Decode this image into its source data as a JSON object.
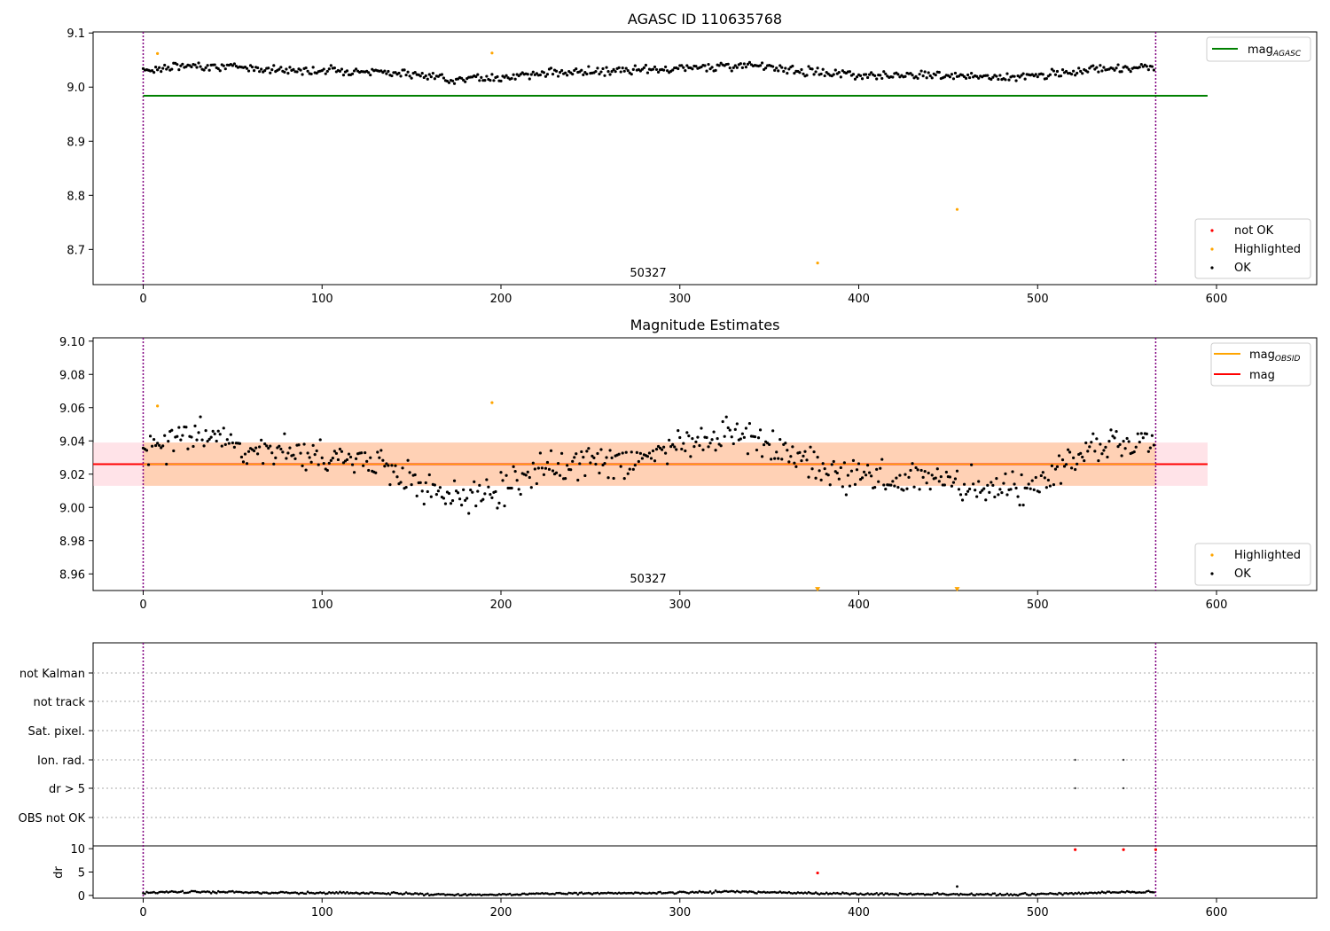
{
  "chart_data": [
    {
      "type": "scatter",
      "title": "AGASC ID 110635768",
      "xlim": [
        -28,
        656
      ],
      "ylim": [
        8.635,
        9.102
      ],
      "xticks": [
        "0",
        "100",
        "200",
        "300",
        "400",
        "500",
        "600"
      ],
      "yticks": [
        "8.7",
        "8.8",
        "8.9",
        "9.0",
        "9.1"
      ],
      "annotation": "50327",
      "obs_bounds": [
        0,
        566
      ],
      "colors": {
        "ok": "#000000",
        "highlighted": "#ffa500",
        "not_ok": "#ff0000",
        "agasc_line": "#008000",
        "bounds": "#800080"
      },
      "agasc_mag": {
        "value": 8.984,
        "x": [
          0,
          595
        ]
      },
      "series": [
        {
          "name": "OK",
          "generator": {
            "n": 566,
            "base": 9.028,
            "amp": 0.009,
            "noise": 0.0065,
            "scatter_step": 0.3
          }
        },
        {
          "name": "Highlighted",
          "x": [
            8,
            195,
            377,
            455
          ],
          "y": [
            9.062,
            9.063,
            8.675,
            8.774
          ]
        }
      ],
      "legend_line": {
        "label_base": "mag",
        "label_sub": "AGASC"
      },
      "legend_points": [
        "not OK",
        "Highlighted",
        "OK"
      ]
    },
    {
      "type": "scatter",
      "title": "Magnitude Estimates",
      "xlim": [
        -28,
        656
      ],
      "ylim": [
        8.95,
        9.102
      ],
      "xticks": [
        "0",
        "100",
        "200",
        "300",
        "400",
        "500",
        "600"
      ],
      "yticks": [
        "8.96",
        "8.98",
        "9.00",
        "9.02",
        "9.04",
        "9.06",
        "9.08",
        "9.10"
      ],
      "annotation": "50327",
      "obs_bounds": [
        0,
        566
      ],
      "mag": {
        "value": 9.026,
        "x": [
          -28,
          595
        ],
        "band_outer": [
          9.013,
          9.039
        ],
        "band_inner": [
          9.013,
          9.039
        ]
      },
      "colors": {
        "mag_line": "#ff0000",
        "obsid_line": "#ffa500",
        "band_outer": "#ffc0cb",
        "band_inner": "#ffcba4"
      },
      "series": [
        {
          "name": "OK",
          "generator": {
            "n": 566,
            "base": 9.026,
            "amp": 0.014,
            "noise": 0.009,
            "scatter_step": 0.3
          }
        },
        {
          "name": "Highlighted",
          "x": [
            8,
            195
          ],
          "y": [
            9.061,
            9.063
          ]
        },
        {
          "name": "Highlighted (off scale)",
          "x": [
            377,
            455
          ],
          "y": [
            8.951,
            8.951
          ]
        }
      ],
      "legend_lines": [
        {
          "label_base": "mag",
          "label_sub": "OBSID"
        },
        {
          "label_base": "mag",
          "label_sub": ""
        }
      ],
      "legend_points": [
        "Highlighted",
        "OK"
      ]
    },
    {
      "type": "scatter",
      "title": "",
      "xlim": [
        -28,
        656
      ],
      "xticks": [
        "0",
        "100",
        "200",
        "300",
        "400",
        "500",
        "600"
      ],
      "flag_labels": [
        "not Kalman",
        "not track",
        "Sat. pixel.",
        "Ion. rad.",
        "dr > 5",
        "OBS not OK"
      ],
      "flag_points": [
        {
          "flag": "Ion. rad.",
          "x": [
            521,
            548
          ]
        },
        {
          "flag": "dr > 5",
          "x": [
            521,
            548
          ]
        }
      ],
      "dr": {
        "ylabel": "dr",
        "yticks": [
          "0",
          "5",
          "10"
        ],
        "ylim": [
          -0.6,
          10.6
        ],
        "ok_generator": {
          "n": 566,
          "base": 0.45,
          "amp": 0.25,
          "noise": 0.2
        },
        "red_points": {
          "x": [
            377,
            521,
            548,
            566
          ],
          "y": [
            4.8,
            9.8,
            9.8,
            9.8
          ]
        },
        "outlier": {
          "x": [
            455
          ],
          "y": [
            1.9
          ]
        }
      }
    }
  ]
}
